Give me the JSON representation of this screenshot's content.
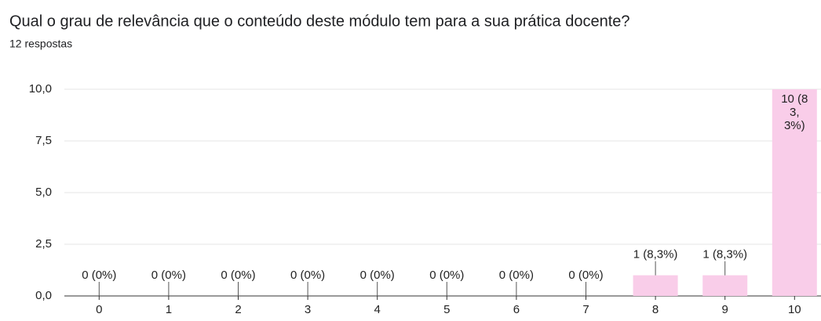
{
  "chart_data": {
    "type": "bar",
    "title": "Qual o grau de relevância que o conteúdo deste módulo tem para a sua prática docente?",
    "subtitle": "12 respostas",
    "categories": [
      "0",
      "1",
      "2",
      "3",
      "4",
      "5",
      "6",
      "7",
      "8",
      "9",
      "10"
    ],
    "values": [
      0,
      0,
      0,
      0,
      0,
      0,
      0,
      0,
      1,
      1,
      10
    ],
    "value_labels": [
      "0 (0%)",
      "0 (0%)",
      "0 (0%)",
      "0 (0%)",
      "0 (0%)",
      "0 (0%)",
      "0 (0%)",
      "0 (0%)",
      "1 (8,3%)",
      "1 (8,3%)",
      "10 (83,3%)"
    ],
    "color": "#f9cde9",
    "ylim": [
      0,
      10
    ],
    "yticks": [
      {
        "value": 0,
        "label": "0,0"
      },
      {
        "value": 2.5,
        "label": "2,5"
      },
      {
        "value": 5,
        "label": "5,0"
      },
      {
        "value": 7.5,
        "label": "7,5"
      },
      {
        "value": 10,
        "label": "10,0"
      }
    ],
    "grid": true
  }
}
